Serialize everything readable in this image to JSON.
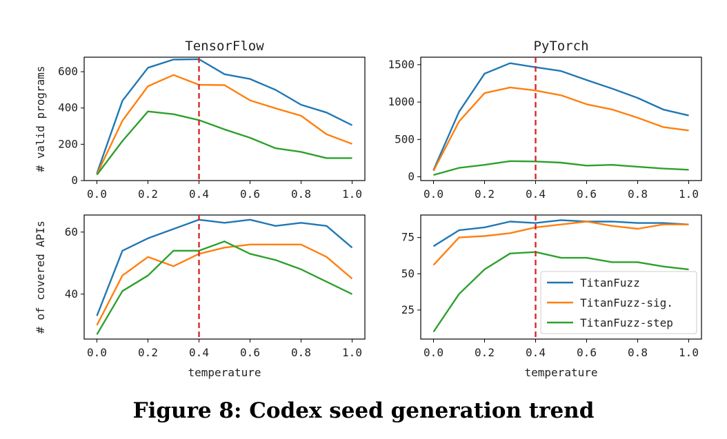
{
  "caption": "Figure 8: Codex seed generation trend",
  "colors": {
    "TitanFuzz": "#1f77b4",
    "TitanFuzz-sig.": "#ff7f0e",
    "TitanFuzz-step": "#2ca02c",
    "reference_line": "#d62728"
  },
  "chart_data": [
    {
      "type": "line",
      "title": "TensorFlow",
      "xlabel": "",
      "ylabel": "# valid programs",
      "x": [
        0.0,
        0.1,
        0.2,
        0.3,
        0.4,
        0.5,
        0.6,
        0.7,
        0.8,
        0.9,
        1.0
      ],
      "xticks": [
        "0.0",
        "0.2",
        "0.4",
        "0.6",
        "0.8",
        "1.0"
      ],
      "yticks": [
        "0",
        "200",
        "400",
        "600"
      ],
      "ylim": [
        0,
        680
      ],
      "vline": 0.4,
      "legend": false,
      "series": [
        {
          "name": "TitanFuzz",
          "values": [
            40,
            440,
            622,
            667,
            669,
            586,
            560,
            500,
            418,
            375,
            305
          ]
        },
        {
          "name": "TitanFuzz-sig.",
          "values": [
            35,
            330,
            520,
            582,
            528,
            526,
            442,
            398,
            357,
            255,
            202
          ]
        },
        {
          "name": "TitanFuzz-step",
          "values": [
            32,
            218,
            381,
            366,
            333,
            282,
            236,
            178,
            158,
            124,
            124
          ]
        }
      ]
    },
    {
      "type": "line",
      "title": "PyTorch",
      "xlabel": "",
      "ylabel": "",
      "x": [
        0.0,
        0.1,
        0.2,
        0.3,
        0.4,
        0.5,
        0.6,
        0.7,
        0.8,
        0.9,
        1.0
      ],
      "xticks": [
        "0.0",
        "0.2",
        "0.4",
        "0.6",
        "0.8",
        "1.0"
      ],
      "yticks": [
        "0",
        "500",
        "1000",
        "1500"
      ],
      "ylim": [
        -50,
        1600
      ],
      "vline": 0.4,
      "legend": false,
      "series": [
        {
          "name": "TitanFuzz",
          "values": [
            90,
            870,
            1380,
            1520,
            1465,
            1415,
            1295,
            1180,
            1055,
            900,
            820
          ]
        },
        {
          "name": "TitanFuzz-sig.",
          "values": [
            80,
            740,
            1120,
            1195,
            1155,
            1090,
            970,
            900,
            790,
            665,
            620
          ]
        },
        {
          "name": "TitanFuzz-step",
          "values": [
            25,
            120,
            160,
            210,
            205,
            190,
            150,
            160,
            135,
            110,
            95
          ]
        }
      ]
    },
    {
      "type": "line",
      "title": "",
      "xlabel": "temperature",
      "ylabel": "# of covered APIs",
      "x": [
        0.0,
        0.1,
        0.2,
        0.3,
        0.4,
        0.5,
        0.6,
        0.7,
        0.8,
        0.9,
        1.0
      ],
      "xticks": [
        "0.0",
        "0.2",
        "0.4",
        "0.6",
        "0.8",
        "1.0"
      ],
      "yticks": [
        "40",
        "60"
      ],
      "ylim": [
        25.5,
        65.5
      ],
      "vline": 0.4,
      "legend": false,
      "series": [
        {
          "name": "TitanFuzz",
          "values": [
            33,
            54,
            58,
            61,
            64,
            63,
            64,
            62,
            63,
            62,
            55
          ]
        },
        {
          "name": "TitanFuzz-sig.",
          "values": [
            30,
            46,
            52,
            49,
            53,
            55,
            56,
            56,
            56,
            52,
            45
          ]
        },
        {
          "name": "TitanFuzz-step",
          "values": [
            27,
            41,
            46,
            54,
            54,
            57,
            53,
            51,
            48,
            44,
            40
          ]
        }
      ]
    },
    {
      "type": "line",
      "title": "",
      "xlabel": "temperature",
      "ylabel": "",
      "x": [
        0.0,
        0.1,
        0.2,
        0.3,
        0.4,
        0.5,
        0.6,
        0.7,
        0.8,
        0.9,
        1.0
      ],
      "xticks": [
        "0.0",
        "0.2",
        "0.4",
        "0.6",
        "0.8",
        "1.0"
      ],
      "yticks": [
        "25",
        "50",
        "75"
      ],
      "ylim": [
        5,
        90.5
      ],
      "vline": 0.4,
      "legend": true,
      "legend_position": "center-right",
      "series": [
        {
          "name": "TitanFuzz",
          "values": [
            69,
            80,
            82,
            86,
            85,
            87,
            86,
            86,
            85,
            85,
            84
          ]
        },
        {
          "name": "TitanFuzz-sig.",
          "values": [
            56,
            75,
            76,
            78,
            82,
            84,
            86,
            83,
            81,
            84,
            84
          ]
        },
        {
          "name": "TitanFuzz-step",
          "values": [
            10,
            36,
            53,
            64,
            65,
            61,
            61,
            58,
            58,
            55,
            53
          ]
        }
      ]
    }
  ]
}
